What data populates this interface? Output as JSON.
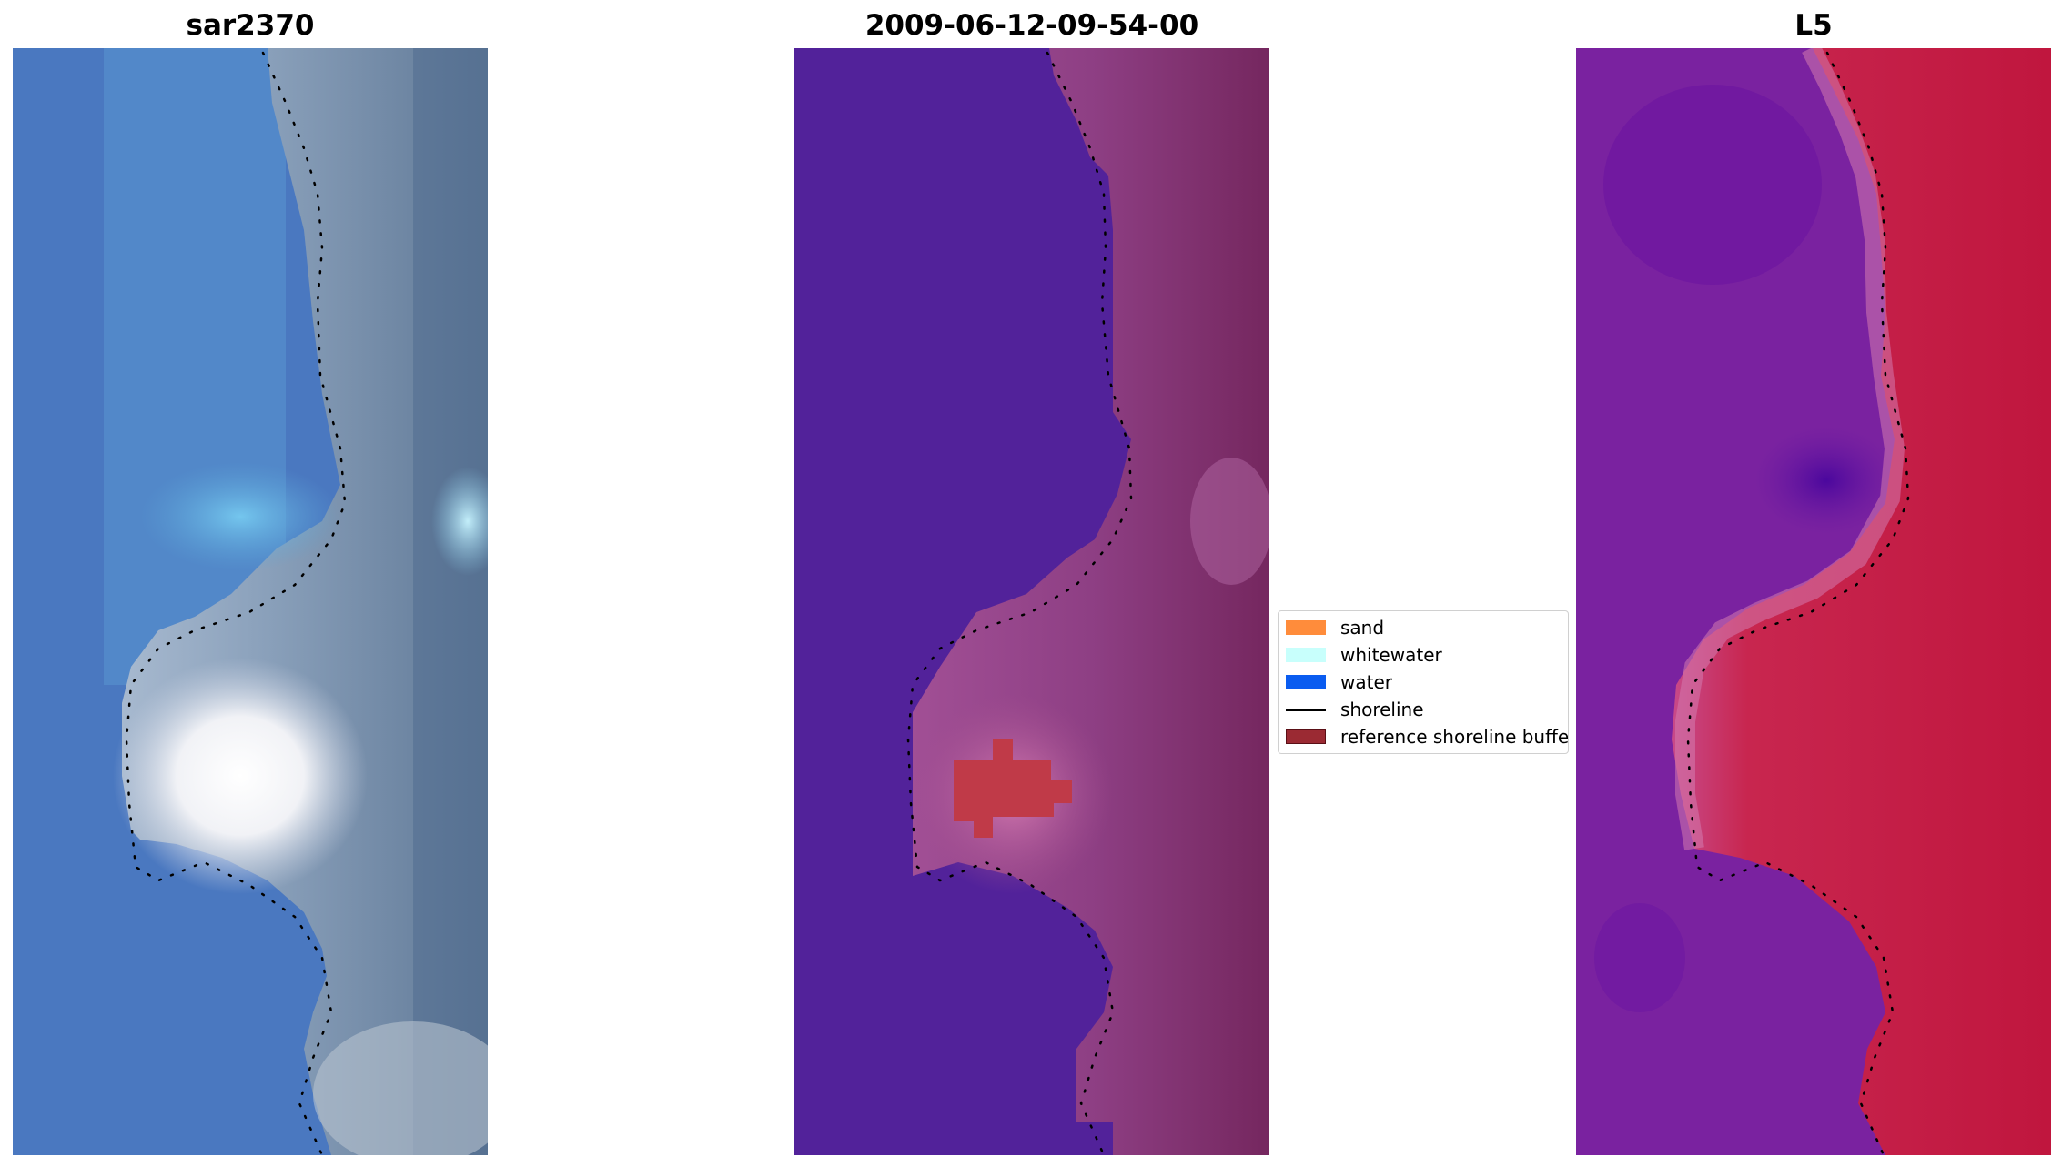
{
  "panels": [
    {
      "title": "sar2370"
    },
    {
      "title": "2009-06-12-09-54-00"
    },
    {
      "title": "L5"
    }
  ],
  "legend": {
    "items": [
      {
        "label": "sand",
        "color": "#ff8c3b",
        "kind": "patch"
      },
      {
        "label": "whitewater",
        "color": "#c8fffc",
        "kind": "patch"
      },
      {
        "label": "water",
        "color": "#0a5cf0",
        "kind": "patch"
      },
      {
        "label": "shoreline",
        "color": "#000000",
        "kind": "line"
      },
      {
        "label": "reference shoreline buffer",
        "color": "#9b2a33",
        "kind": "patch"
      }
    ]
  },
  "colors": {
    "rgb_water": "#4a78c0",
    "rgb_land": "#6f8eaa",
    "class_water": "#52229a",
    "class_land": "#8e3f84",
    "class_buffer": "#c03a48",
    "mndwi_water": "#7a22a0",
    "mndwi_land": "#c0163e"
  }
}
